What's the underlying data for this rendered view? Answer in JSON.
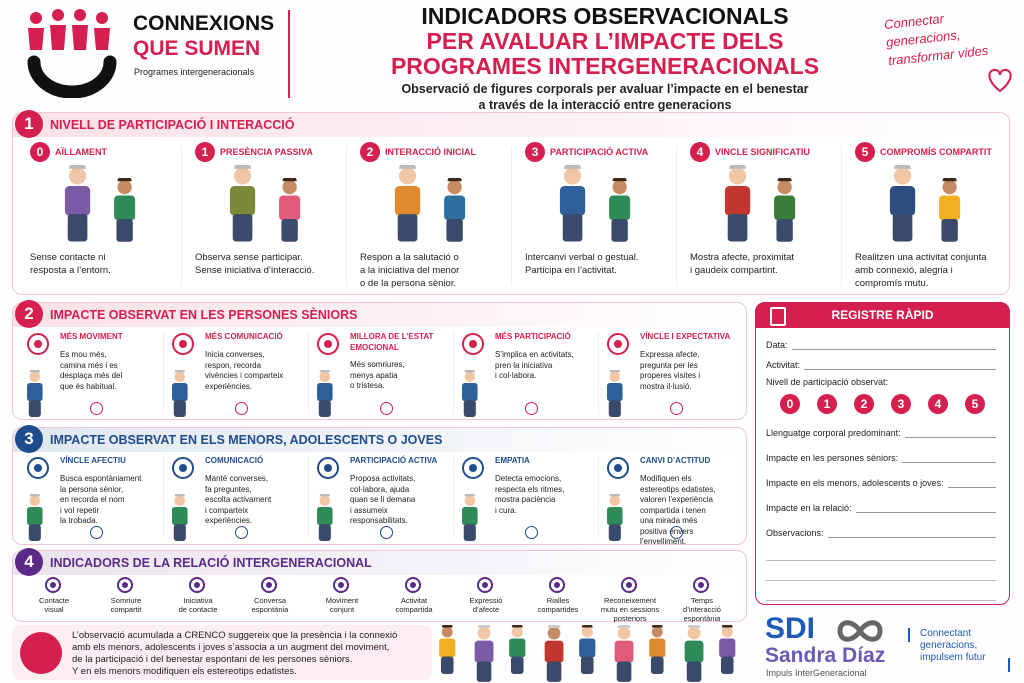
{
  "header": {
    "logo": {
      "line1": "CONNEXIONS",
      "line2": "QUE SUMEN",
      "caption": "Programes intergeneracionals"
    },
    "title": [
      "INDICADORS OBSERVACIONALS",
      "PER AVALUAR L’IMPACTE DELS",
      "PROGRAMES INTERGENERACIONALS"
    ],
    "subtitle": [
      "Observació de figures corporals per avaluar l’impacte en el benestar",
      "a través de la interacció entre generacions"
    ],
    "tagline": [
      "Connectar",
      "generacions,",
      "transformar vides"
    ]
  },
  "participation": {
    "number": 1,
    "title": "NIVELL DE PARTICIPACIÓ I INTERACCIÓ",
    "levels": [
      {
        "number": 0,
        "name": "AÏLLAMENT",
        "description": [
          "Sense contacte ni",
          "resposta a l’entorn."
        ]
      },
      {
        "number": 1,
        "name": "PRESÈNCIA PASSIVA",
        "description": [
          "Observa sense participar.",
          "Sense iniciativa d’interacció."
        ]
      },
      {
        "number": 2,
        "name": "INTERACCIÓ INICIAL",
        "description": [
          "Respon a la salutació o",
          "a la iniciativa del menor",
          "o de la persona sènior."
        ]
      },
      {
        "number": 3,
        "name": "PARTICIPACIÓ ACTIVA",
        "description": [
          "Intercanvi verbal o gestual.",
          "Participa en l’activitat."
        ]
      },
      {
        "number": 4,
        "name": "VINCLE SIGNIFICATIU",
        "description": [
          "Mostra afecte, proximitat",
          "i gaudeix compartint."
        ]
      },
      {
        "number": 5,
        "name": "COMPROMÍS COMPARTIT",
        "description": [
          "Realitzen una activitat conjunta",
          "amb connexió, alegria i",
          "compromís mutu."
        ]
      }
    ]
  },
  "seniors": {
    "number": 2,
    "title": "IMPACTE OBSERVAT EN LES PERSONES SÈNIORS",
    "items": [
      {
        "title": "MÉS MOVIMENT",
        "text": [
          "Es mou més,",
          "camina més i es",
          "desplaça més del",
          "que és habitual."
        ]
      },
      {
        "title": "MÉS COMUNICACIÓ",
        "text": [
          "Inicia converses,",
          "respon, recorda",
          "vivències i comparteix",
          "experiències."
        ]
      },
      {
        "title": "MILLORA DE L’ESTAT EMOCIONAL",
        "text": [
          "Més somriures,",
          "menys apatia",
          "o tristesa."
        ]
      },
      {
        "title": "MÉS PARTICIPACIÓ",
        "text": [
          "S’implica en activitats,",
          "pren la iniciativa",
          "i col·labora."
        ]
      },
      {
        "title": "VÍNCLE I EXPECTATIVA",
        "text": [
          "Expressa afecte,",
          "pregunta per les",
          "properes visites i",
          "mostra il·lusió."
        ]
      }
    ]
  },
  "youth": {
    "number": 3,
    "title": "IMPACTE OBSERVAT EN ELS MENORS, ADOLESCENTS O JOVES",
    "items": [
      {
        "title": "VÍNCLE AFECTIU",
        "text": [
          "Busca espontàniament",
          "la persona sènior,",
          "en recorda el nom",
          "i vol repetir",
          "la trobada."
        ]
      },
      {
        "title": "COMUNICACIÓ",
        "text": [
          "Manté converses,",
          "fa preguntes,",
          "escolta activament",
          "i comparteix",
          "experiències."
        ]
      },
      {
        "title": "PARTICIPACIÓ ACTIVA",
        "text": [
          "Proposa activitats,",
          "col·labora, ajuda",
          "quan se li demana",
          "i assumeix",
          "responsabilitats."
        ]
      },
      {
        "title": "EMPATIA",
        "text": [
          "Detecta emocions,",
          "respecta els ritmes,",
          "mostra paciència",
          "i cura."
        ]
      },
      {
        "title": "CANVI D’ACTITUD",
        "text": [
          "Modifiquen els",
          "estereotips edatistes,",
          "valoren l’experiència",
          "compartida i tenen",
          "una mirada més",
          "positiva envers",
          "l’envelliment."
        ]
      }
    ]
  },
  "relation": {
    "number": 4,
    "title": "INDICADORS DE LA RELACIÓ INTERGENERACIONAL",
    "indicators": [
      [
        "Contacte",
        "visual"
      ],
      [
        "Somriure",
        "compartit"
      ],
      [
        "Iniciativa",
        "de contacte"
      ],
      [
        "Conversa",
        "espontània"
      ],
      [
        "Moviment",
        "conjunt"
      ],
      [
        "Activitat",
        "compartida"
      ],
      [
        "Expressió",
        "d’afecte"
      ],
      [
        "Rialles",
        "compartides"
      ],
      [
        "Reconeixement",
        "mutu en sessions",
        "posteriors"
      ],
      [
        "Temps",
        "d’interacció",
        "espontània"
      ]
    ]
  },
  "register": {
    "title": "REGISTRE RÀPID",
    "fields_top": [
      "Data:",
      "Activitat:"
    ],
    "level_label": "Nivell de participació observat:",
    "levels": [
      0,
      1,
      2,
      3,
      4,
      5
    ],
    "fields_bottom": [
      "Llenguatge corporal predominant:",
      "Impacte en les persones sèniors:",
      "Impacte en els menors, adolescents o joves:",
      "Impacte en la relació:",
      "Observacions:"
    ]
  },
  "footer": {
    "note": [
      "L’observació acumulada a CRENCO suggereix que la presència i la connexió",
      "amb els menors, adolescents i joves s’associa a un augment del moviment,",
      "de la participació i del benestar espontani de les persones sèniors.",
      "Y en els menors modifiquen els estereotips edatistes."
    ],
    "brand": {
      "acronym": "SDI",
      "name": "Sandra Díaz",
      "caption": "Impuls InterGeneracional"
    },
    "tagline": [
      "Connectant",
      "generacions,",
      "impulsem futur"
    ]
  }
}
